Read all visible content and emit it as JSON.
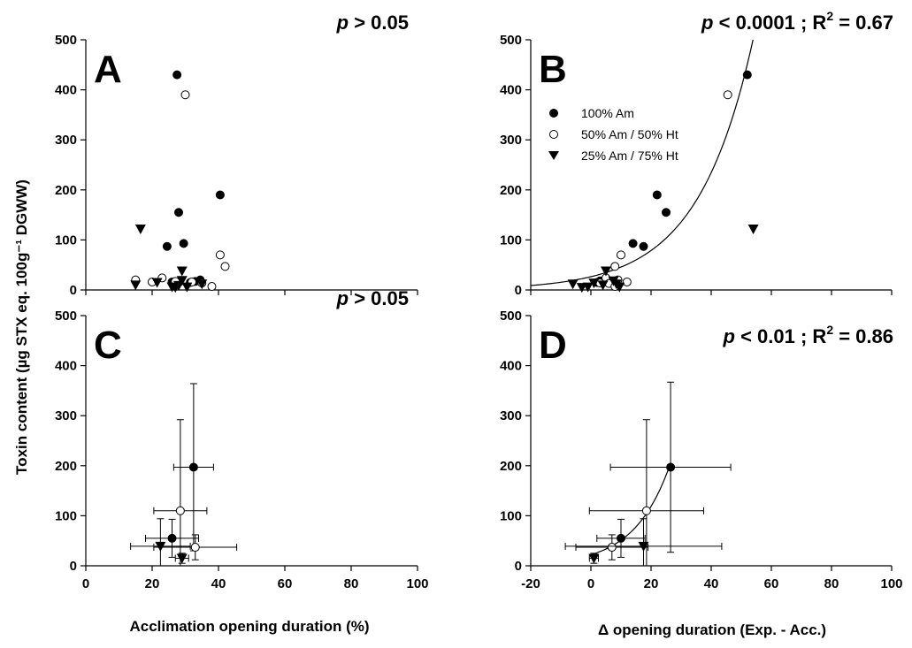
{
  "figure": {
    "y_axis_label": "Toxin content (µg STX eq. 100g⁻¹ DGWW)",
    "x_axis_label_left": "Acclimation opening duration (%)",
    "x_axis_label_right": "Δ opening duration (Exp. - Acc.)"
  },
  "legend": [
    {
      "label": "100% Am",
      "marker": "filled-circle"
    },
    {
      "label": "50% Am / 50% Ht",
      "marker": "open-circle"
    },
    {
      "label": "25% Am / 75% Ht",
      "marker": "filled-triangle-down"
    }
  ],
  "chart_data": [
    {
      "panel": "A",
      "type": "scatter",
      "stat_label": "p > 0.05",
      "xlim": [
        0,
        100
      ],
      "ylim": [
        0,
        500
      ],
      "x_ticks": [
        0,
        20,
        40,
        60,
        80,
        100
      ],
      "y_ticks": [
        0,
        100,
        200,
        300,
        400,
        500
      ],
      "show_x_tick_labels": false,
      "series": [
        {
          "name": "100% Am",
          "marker": "filled-circle",
          "points": [
            [
              27.5,
              430
            ],
            [
              40.5,
              190
            ],
            [
              28,
              155
            ],
            [
              29.5,
              93
            ],
            [
              24.5,
              87
            ],
            [
              15,
              18
            ],
            [
              26,
              16
            ],
            [
              33,
              17
            ],
            [
              34.5,
              20
            ],
            [
              31.5,
              15
            ]
          ]
        },
        {
          "name": "50% Am / 50% Ht",
          "marker": "open-circle",
          "points": [
            [
              30,
              390
            ],
            [
              40.5,
              70
            ],
            [
              42,
              47
            ],
            [
              23,
              24
            ],
            [
              15,
              20
            ],
            [
              20,
              16
            ],
            [
              32,
              16
            ],
            [
              38,
              7
            ],
            [
              35,
              14
            ],
            [
              27,
              17
            ]
          ]
        },
        {
          "name": "25% Am / 75% Ht",
          "marker": "filled-triangle-down",
          "points": [
            [
              16.5,
              122
            ],
            [
              29,
              38
            ],
            [
              15,
              10
            ],
            [
              21.5,
              15
            ],
            [
              26,
              6
            ],
            [
              29,
              19
            ],
            [
              28,
              9
            ],
            [
              30.5,
              6
            ],
            [
              35,
              12
            ],
            [
              27,
              5
            ]
          ]
        }
      ]
    },
    {
      "panel": "B",
      "type": "scatter",
      "stat_label_p": "p < 0.0001",
      "stat_label_r": "R",
      "stat_label_r_sup": "2",
      "stat_label_r_val": " = 0.67",
      "xlim": [
        -20,
        100
      ],
      "ylim": [
        0,
        500
      ],
      "x_ticks": [
        -20,
        0,
        20,
        40,
        60,
        80,
        100
      ],
      "y_ticks": [
        0,
        100,
        200,
        300,
        400,
        500
      ],
      "show_x_tick_labels": false,
      "fit": {
        "type": "exponential",
        "a": 26.5,
        "b": 0.0545
      },
      "series": [
        {
          "name": "100% Am",
          "marker": "filled-circle",
          "points": [
            [
              52,
              430
            ],
            [
              22,
              190
            ],
            [
              25,
              155
            ],
            [
              14,
              93
            ],
            [
              17.5,
              87
            ],
            [
              3,
              18
            ],
            [
              5.5,
              16
            ],
            [
              8,
              18
            ],
            [
              2,
              15
            ],
            [
              4.5,
              20
            ]
          ]
        },
        {
          "name": "50% Am / 50% Ht",
          "marker": "open-circle",
          "points": [
            [
              45.5,
              390
            ],
            [
              10,
              70
            ],
            [
              8,
              47
            ],
            [
              5,
              24
            ],
            [
              7,
              16
            ],
            [
              12,
              16
            ],
            [
              6,
              13
            ],
            [
              8,
              7
            ],
            [
              3,
              14
            ],
            [
              9,
              20
            ]
          ]
        },
        {
          "name": "25% Am / 75% Ht",
          "marker": "filled-triangle-down",
          "points": [
            [
              54,
              122
            ],
            [
              5,
              38
            ],
            [
              -6,
              12
            ],
            [
              -3,
              5
            ],
            [
              -1,
              6
            ],
            [
              1,
              14
            ],
            [
              4,
              10
            ],
            [
              7.5,
              18
            ],
            [
              8.5,
              12
            ],
            [
              9.5,
              6
            ]
          ]
        }
      ]
    },
    {
      "panel": "C",
      "type": "scatter",
      "stat_label": "p > 0.05",
      "xlim": [
        0,
        100
      ],
      "ylim": [
        0,
        500
      ],
      "x_ticks": [
        0,
        20,
        40,
        60,
        80,
        100
      ],
      "y_ticks": [
        0,
        100,
        200,
        300,
        400,
        500
      ],
      "show_x_tick_labels": true,
      "series": [
        {
          "name": "100% Am",
          "marker": "filled-circle",
          "points": [
            [
              32.5,
              197,
              6,
              167
            ],
            [
              26,
              55,
              8,
              38
            ]
          ]
        },
        {
          "name": "50% Am / 50% Ht",
          "marker": "open-circle",
          "points": [
            [
              28.5,
              110,
              8,
              182
            ],
            [
              33,
              37,
              12.5,
              25
            ]
          ]
        },
        {
          "name": "25% Am / 75% Ht",
          "marker": "filled-triangle-down",
          "points": [
            [
              22.5,
              39,
              9,
              55
            ],
            [
              29,
              15,
              2,
              10
            ]
          ]
        }
      ]
    },
    {
      "panel": "D",
      "type": "scatter",
      "stat_label_p": "p < 0.01",
      "stat_label_r": "R",
      "stat_label_r_sup": "2",
      "stat_label_r_val": " = 0.86",
      "xlim": [
        -20,
        100
      ],
      "ylim": [
        0,
        500
      ],
      "x_ticks": [
        -20,
        0,
        20,
        40,
        60,
        80,
        100
      ],
      "y_ticks": [
        0,
        100,
        200,
        300,
        400,
        500
      ],
      "show_x_tick_labels": true,
      "fit": {
        "type": "exponential",
        "a": 22.0,
        "b": 0.0843,
        "xrange": [
          0,
          26.5
        ]
      },
      "series": [
        {
          "name": "100% Am",
          "marker": "filled-circle",
          "points": [
            [
              26.5,
              197,
              20,
              170
            ],
            [
              10,
              55,
              8,
              38
            ]
          ]
        },
        {
          "name": "50% Am / 50% Ht",
          "marker": "open-circle",
          "points": [
            [
              18.5,
              110,
              19,
              182
            ],
            [
              7,
              37,
              12,
              25
            ]
          ]
        },
        {
          "name": "25% Am / 75% Ht",
          "marker": "filled-triangle-down",
          "points": [
            [
              17.5,
              39,
              26,
              55
            ],
            [
              1,
              15,
              1.5,
              10
            ]
          ]
        }
      ]
    }
  ]
}
